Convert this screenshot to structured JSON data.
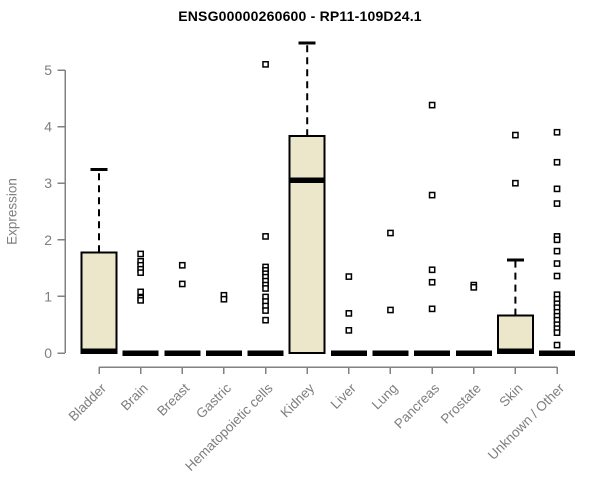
{
  "chart_data": {
    "type": "boxplot",
    "title": "ENSG00000260600 - RP11-109D24.1",
    "ylabel": "Expression",
    "xlabel": "",
    "ylim": [
      0,
      5.5
    ],
    "yticks": [
      0,
      1,
      2,
      3,
      4,
      5
    ],
    "grid": false,
    "legend": "none",
    "categories": [
      "Bladder",
      "Brain",
      "Breast",
      "Gastric",
      "Hematopoietic cells",
      "Kidney",
      "Liver",
      "Lung",
      "Pancreas",
      "Prostate",
      "Skin",
      "Unknown / Other"
    ],
    "series": [
      {
        "category": "Bladder",
        "q1": 0,
        "median": 0.03,
        "q3": 1.78,
        "whisker_low": 0,
        "whisker_high": 3.24,
        "outliers": []
      },
      {
        "category": "Brain",
        "q1": 0,
        "median": 0,
        "q3": 0,
        "whisker_low": 0,
        "whisker_high": 0,
        "outliers": [
          1.75,
          1.62,
          1.55,
          1.48,
          1.42,
          1.08,
          0.97,
          0.93
        ]
      },
      {
        "category": "Breast",
        "q1": 0,
        "median": 0,
        "q3": 0,
        "whisker_low": 0,
        "whisker_high": 0,
        "outliers": [
          1.55,
          1.22
        ]
      },
      {
        "category": "Gastric",
        "q1": 0,
        "median": 0,
        "q3": 0,
        "whisker_low": 0,
        "whisker_high": 0,
        "outliers": [
          1.02,
          0.95
        ]
      },
      {
        "category": "Hematopoietic cells",
        "q1": 0,
        "median": 0,
        "q3": 0,
        "whisker_low": 0,
        "whisker_high": 0,
        "outliers": [
          5.1,
          2.06,
          1.52,
          1.46,
          1.4,
          1.34,
          1.27,
          1.2,
          1.14,
          0.99,
          0.91,
          0.83,
          0.75,
          0.58
        ]
      },
      {
        "category": "Kidney",
        "q1": 0,
        "median": 3.05,
        "q3": 3.83,
        "whisker_low": 0,
        "whisker_high": 5.48,
        "outliers": []
      },
      {
        "category": "Liver",
        "q1": 0,
        "median": 0,
        "q3": 0,
        "whisker_low": 0,
        "whisker_high": 0,
        "outliers": [
          1.35,
          0.7,
          0.4
        ]
      },
      {
        "category": "Lung",
        "q1": 0,
        "median": 0,
        "q3": 0,
        "whisker_low": 0,
        "whisker_high": 0,
        "outliers": [
          2.12,
          0.76
        ]
      },
      {
        "category": "Pancreas",
        "q1": 0,
        "median": 0,
        "q3": 0,
        "whisker_low": 0,
        "whisker_high": 0,
        "outliers": [
          4.38,
          2.79,
          1.47,
          1.25,
          0.78
        ]
      },
      {
        "category": "Prostate",
        "q1": 0,
        "median": 0,
        "q3": 0,
        "whisker_low": 0,
        "whisker_high": 0,
        "outliers": [
          1.2,
          1.16
        ]
      },
      {
        "category": "Skin",
        "q1": 0,
        "median": 0.03,
        "q3": 0.66,
        "whisker_low": 0,
        "whisker_high": 1.64,
        "outliers": [
          3.85,
          3.0
        ]
      },
      {
        "category": "Unknown / Other",
        "q1": 0,
        "median": 0,
        "q3": 0,
        "whisker_low": 0,
        "whisker_high": 0,
        "outliers": [
          3.9,
          3.37,
          2.9,
          2.64,
          2.06,
          2.0,
          1.8,
          1.58,
          1.36,
          1.03,
          0.95,
          0.87,
          0.8,
          0.72,
          0.65,
          0.58,
          0.5,
          0.43,
          0.36,
          0.14
        ]
      }
    ],
    "colors": {
      "box_fill": "#ECE7CB",
      "box_border": "#000000",
      "median": "#000000",
      "whisker": "#000000",
      "outlier": "#000000",
      "axis": "#828282",
      "tick_label": "#7e7e7e",
      "title": "#000000",
      "background": "#ffffff"
    }
  }
}
